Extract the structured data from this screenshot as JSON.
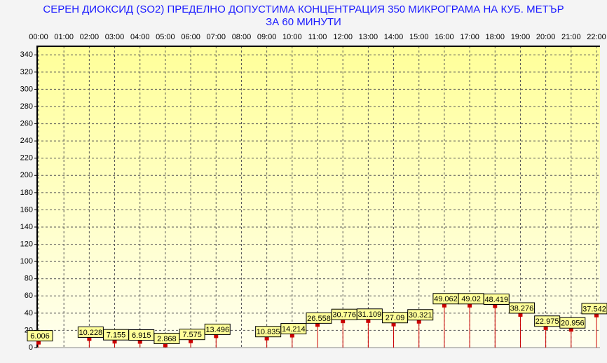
{
  "chart_data": {
    "type": "line",
    "title": "СЕРЕН ДИОКСИД  (SO2)  ПРЕДЕЛНО ДОПУСТИМА КОНЦЕНТРАЦИЯ 350 МИКРОГРАМА  НА КУБ. МЕТЪР",
    "subtitle": "ЗА 60 МИНУТИ",
    "categories": [
      "00:00",
      "01:00",
      "02:00",
      "03:00",
      "04:00",
      "05:00",
      "06:00",
      "07:00",
      "08:00",
      "09:00",
      "10:00",
      "11:00",
      "12:00",
      "13:00",
      "14:00",
      "15:00",
      "16:00",
      "17:00",
      "18:00",
      "19:00",
      "20:00",
      "21:00",
      "22:00"
    ],
    "values": [
      6.006,
      null,
      10.228,
      7.155,
      6.915,
      2.868,
      7.575,
      13.496,
      null,
      10.835,
      14.214,
      26.558,
      30.776,
      31.109,
      27.09,
      30.321,
      49.062,
      49.02,
      48.419,
      38.276,
      22.975,
      20.956,
      37.542
    ],
    "color": "#cc0000",
    "ylim": [
      0,
      350
    ],
    "yticks": [
      0,
      20,
      40,
      60,
      80,
      100,
      120,
      140,
      160,
      180,
      200,
      220,
      240,
      260,
      280,
      300,
      320,
      340
    ],
    "grid": true
  }
}
